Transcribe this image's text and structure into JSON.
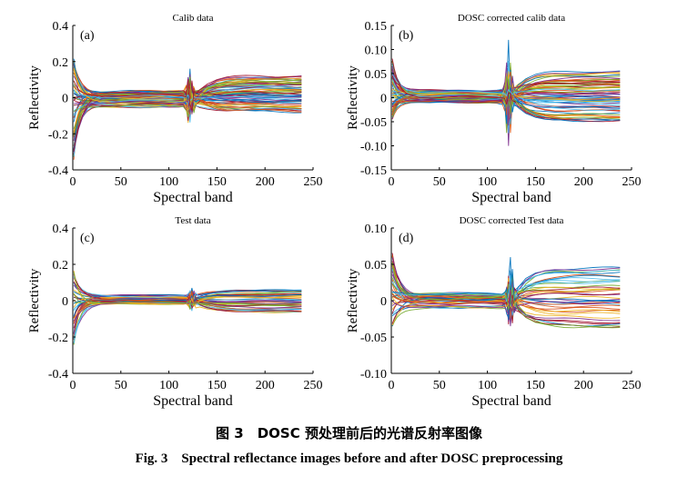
{
  "figure": {
    "caption_cn": "图 3　DOSC 预处理前后的光谱反射率图像",
    "caption_en": "Fig. 3　Spectral reflectance images before and after DOSC preprocessing"
  },
  "palette": [
    "#0072BD",
    "#D95319",
    "#EDB120",
    "#7E2F8E",
    "#77AC30",
    "#4DBEEE",
    "#A2142F"
  ],
  "chart_data": [
    {
      "type": "line",
      "panel_label": "(a)",
      "title": "Calib data",
      "xlabel": "Spectral band",
      "ylabel": "Reflectivity",
      "xlim": [
        0,
        250
      ],
      "ylim": [
        -0.4,
        0.4
      ],
      "xticks": [
        0,
        50,
        100,
        150,
        200,
        250
      ],
      "yticks": [
        -0.4,
        -0.2,
        0,
        0.2,
        0.4
      ],
      "ytick_labels": [
        "-0.4",
        "-0.2",
        "0",
        "0.2",
        "0.4"
      ],
      "grid": false,
      "legend": "none",
      "n_series": 70,
      "x": [
        1,
        3,
        6,
        10,
        15,
        20,
        30,
        40,
        50,
        60,
        70,
        80,
        90,
        100,
        110,
        115,
        118,
        120,
        122,
        124,
        126,
        128,
        132,
        140,
        150,
        160,
        170,
        180,
        190,
        200,
        210,
        220,
        230,
        238
      ],
      "series_summary": {
        "start_range": [
          -0.35,
          0.21
        ],
        "plateau_range": [
          -0.05,
          0.035
        ],
        "late_range": [
          -0.08,
          0.12
        ],
        "peak": {
          "x": 122,
          "y": 0.16
        }
      }
    },
    {
      "type": "line",
      "panel_label": "(b)",
      "title": "DOSC corrected calib data",
      "xlabel": "Spectral band",
      "ylabel": "Reflectivity",
      "xlim": [
        0,
        250
      ],
      "ylim": [
        -0.15,
        0.15
      ],
      "xticks": [
        0,
        50,
        100,
        150,
        200,
        250
      ],
      "yticks": [
        -0.15,
        -0.1,
        -0.05,
        0,
        0.05,
        0.1,
        0.15
      ],
      "ytick_labels": [
        "-0.15",
        "-0.10",
        "-0.05",
        "0",
        "0.05",
        "0.10",
        "0.15"
      ],
      "grid": false,
      "legend": "none",
      "n_series": 70,
      "x": [
        1,
        3,
        6,
        10,
        15,
        20,
        30,
        40,
        50,
        60,
        70,
        80,
        90,
        100,
        110,
        115,
        118,
        120,
        122,
        124,
        126,
        128,
        132,
        140,
        150,
        160,
        170,
        180,
        190,
        200,
        210,
        220,
        230,
        238
      ],
      "series_summary": {
        "start_range": [
          -0.05,
          0.08
        ],
        "plateau_range": [
          -0.01,
          0.015
        ],
        "late_range": [
          -0.05,
          0.055
        ],
        "peak": {
          "x": 122,
          "y": 0.12
        }
      }
    },
    {
      "type": "line",
      "panel_label": "(c)",
      "title": "Test data",
      "xlabel": "Spectral band",
      "ylabel": "Reflectivity",
      "xlim": [
        0,
        250
      ],
      "ylim": [
        -0.4,
        0.4
      ],
      "xticks": [
        0,
        50,
        100,
        150,
        200,
        250
      ],
      "yticks": [
        -0.4,
        -0.2,
        0,
        0.2,
        0.4
      ],
      "ytick_labels": [
        "-0.4",
        "-0.2",
        "0",
        "0.2",
        "0.4"
      ],
      "grid": false,
      "legend": "none",
      "n_series": 40,
      "x": [
        1,
        3,
        6,
        10,
        15,
        20,
        30,
        40,
        50,
        60,
        70,
        80,
        90,
        100,
        110,
        115,
        118,
        120,
        122,
        124,
        126,
        128,
        132,
        140,
        150,
        160,
        170,
        180,
        190,
        200,
        210,
        220,
        230,
        238
      ],
      "series_summary": {
        "start_range": [
          -0.25,
          0.19
        ],
        "plateau_range": [
          -0.02,
          0.03
        ],
        "late_range": [
          -0.07,
          0.06
        ],
        "peak": {
          "x": 124,
          "y": 0.07
        }
      }
    },
    {
      "type": "line",
      "panel_label": "(d)",
      "title": "DOSC corrected Test data",
      "xlabel": "Spectral band",
      "ylabel": "Reflectivity",
      "xlim": [
        0,
        250
      ],
      "ylim": [
        -0.1,
        0.1
      ],
      "xticks": [
        0,
        50,
        100,
        150,
        200,
        250
      ],
      "yticks": [
        -0.1,
        -0.05,
        0,
        0.05,
        0.1
      ],
      "ytick_labels": [
        "-0.10",
        "-0.05",
        "0",
        "0.05",
        "0.10"
      ],
      "grid": false,
      "legend": "none",
      "n_series": 40,
      "x": [
        1,
        3,
        6,
        10,
        15,
        20,
        30,
        40,
        50,
        60,
        70,
        80,
        90,
        100,
        110,
        115,
        118,
        120,
        122,
        124,
        126,
        128,
        132,
        140,
        150,
        160,
        170,
        180,
        190,
        200,
        210,
        220,
        230,
        238
      ],
      "series_summary": {
        "start_range": [
          -0.04,
          0.065
        ],
        "plateau_range": [
          -0.01,
          0.01
        ],
        "late_range": [
          -0.04,
          0.045
        ],
        "peak": {
          "x": 124,
          "y": 0.06
        }
      }
    }
  ]
}
